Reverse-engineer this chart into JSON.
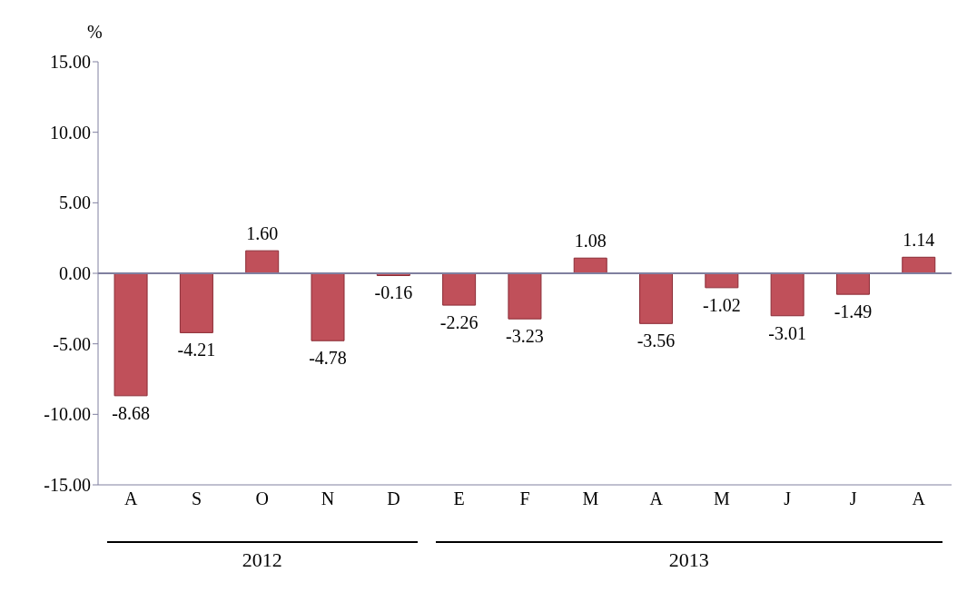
{
  "chart_data": {
    "type": "bar",
    "ylabel": "%",
    "categories": [
      "A",
      "S",
      "O",
      "N",
      "D",
      "E",
      "F",
      "M",
      "A",
      "M",
      "J",
      "J",
      "A"
    ],
    "values": [
      -8.68,
      -4.21,
      1.6,
      -4.78,
      -0.16,
      -2.26,
      -3.23,
      1.08,
      -3.56,
      -1.02,
      -3.01,
      -1.49,
      1.14
    ],
    "value_labels": [
      "-8.68",
      "-4.21",
      "1.60",
      "-4.78",
      "-0.16",
      "-2.26",
      "-3.23",
      "1.08",
      "-3.56",
      "-1.02",
      "-3.01",
      "-1.49",
      "1.14"
    ],
    "color": "#c0505a",
    "ylim": [
      -15,
      15
    ],
    "yticks": [
      {
        "value": -15,
        "label": "-15.00"
      },
      {
        "value": -10,
        "label": "-10.00"
      },
      {
        "value": -5,
        "label": "-5.00"
      },
      {
        "value": 0,
        "label": "0.00"
      },
      {
        "value": 5,
        "label": "5.00"
      },
      {
        "value": 10,
        "label": "10.00"
      },
      {
        "value": 15,
        "label": "15.00"
      }
    ],
    "annotations": [
      "2012",
      "2013"
    ],
    "legend": false
  }
}
